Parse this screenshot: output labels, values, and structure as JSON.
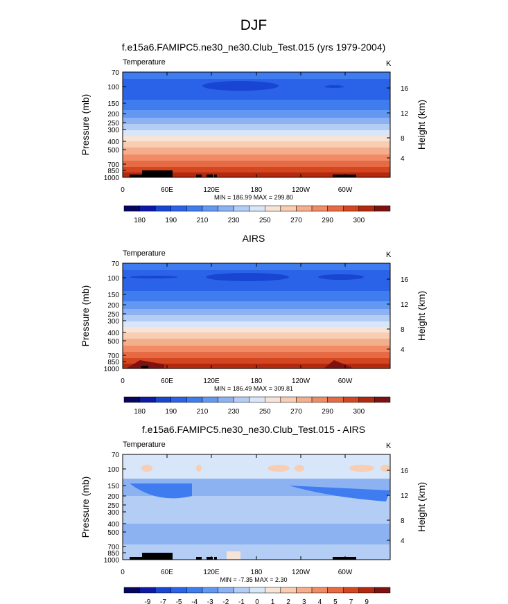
{
  "main_title": "DJF",
  "chart_data": [
    {
      "type": "heatmap",
      "title": "f.e15a6.FAMIPC5.ne30_ne30.Club_Test.015 (yrs 1979-2004)",
      "left_string": "Temperature",
      "right_string": "K",
      "ylabel": "Pressure (mb)",
      "ylabel_right": "Height (km)",
      "x_tick_labels": [
        "0",
        "60E",
        "120E",
        "180",
        "120W",
        "60W"
      ],
      "y_tick_labels": [
        "70",
        "100",
        "150",
        "200",
        "250",
        "300",
        "400",
        "500",
        "700",
        "850",
        "1000"
      ],
      "y_right_tick_labels": [
        "16",
        "12",
        "8",
        "4"
      ],
      "stats": "MIN = 186.99  MAX = 299.80",
      "colorbar_labels": [
        "180",
        "190",
        "210",
        "230",
        "250",
        "270",
        "290",
        "300"
      ],
      "colorbar_colors": [
        "#06065e",
        "#0c1aa6",
        "#1846d2",
        "#2a62e8",
        "#3f7cf0",
        "#6398f2",
        "#8cb2f2",
        "#b3cdf5",
        "#d7e6f8",
        "#f7e4d6",
        "#f8cdb2",
        "#f5ae8c",
        "#f08b66",
        "#e66a44",
        "#d4461f",
        "#b3290f",
        "#7e1212"
      ]
    },
    {
      "type": "heatmap",
      "title": "AIRS",
      "left_string": "Temperature",
      "right_string": "K",
      "ylabel": "Pressure (mb)",
      "ylabel_right": "Height (km)",
      "x_tick_labels": [
        "0",
        "60E",
        "120E",
        "180",
        "120W",
        "60W"
      ],
      "y_tick_labels": [
        "70",
        "100",
        "150",
        "200",
        "250",
        "300",
        "400",
        "500",
        "700",
        "850",
        "1000"
      ],
      "y_right_tick_labels": [
        "16",
        "12",
        "8",
        "4"
      ],
      "stats": "MIN = 186.49  MAX = 309.81",
      "colorbar_labels": [
        "180",
        "190",
        "210",
        "230",
        "250",
        "270",
        "290",
        "300"
      ],
      "colorbar_colors": [
        "#06065e",
        "#0c1aa6",
        "#1846d2",
        "#2a62e8",
        "#3f7cf0",
        "#6398f2",
        "#8cb2f2",
        "#b3cdf5",
        "#d7e6f8",
        "#f7e4d6",
        "#f8cdb2",
        "#f5ae8c",
        "#f08b66",
        "#e66a44",
        "#d4461f",
        "#b3290f",
        "#7e1212"
      ]
    },
    {
      "type": "heatmap",
      "title": "f.e15a6.FAMIPC5.ne30_ne30.Club_Test.015 - AIRS",
      "left_string": "Temperature",
      "right_string": "K",
      "ylabel": "Pressure (mb)",
      "ylabel_right": "Height (km)",
      "x_tick_labels": [
        "0",
        "60E",
        "120E",
        "180",
        "120W",
        "60W"
      ],
      "y_tick_labels": [
        "70",
        "100",
        "150",
        "200",
        "250",
        "300",
        "400",
        "500",
        "700",
        "850",
        "1000"
      ],
      "y_right_tick_labels": [
        "16",
        "12",
        "8",
        "4"
      ],
      "stats": "MIN = -7.35  MAX =  2.30",
      "colorbar_labels": [
        "-9",
        "-7",
        "-5",
        "-4",
        "-3",
        "-2",
        "-1",
        "0",
        "1",
        "2",
        "3",
        "4",
        "5",
        "7",
        "9"
      ],
      "colorbar_colors": [
        "#06065e",
        "#0c1aa6",
        "#1846d2",
        "#2a62e8",
        "#3f7cf0",
        "#6398f2",
        "#8cb2f2",
        "#b3cdf5",
        "#d7e6f8",
        "#f7e4d6",
        "#f8cdb2",
        "#f5ae8c",
        "#f08b66",
        "#e66a44",
        "#d4461f",
        "#b3290f",
        "#7e1212"
      ]
    }
  ]
}
